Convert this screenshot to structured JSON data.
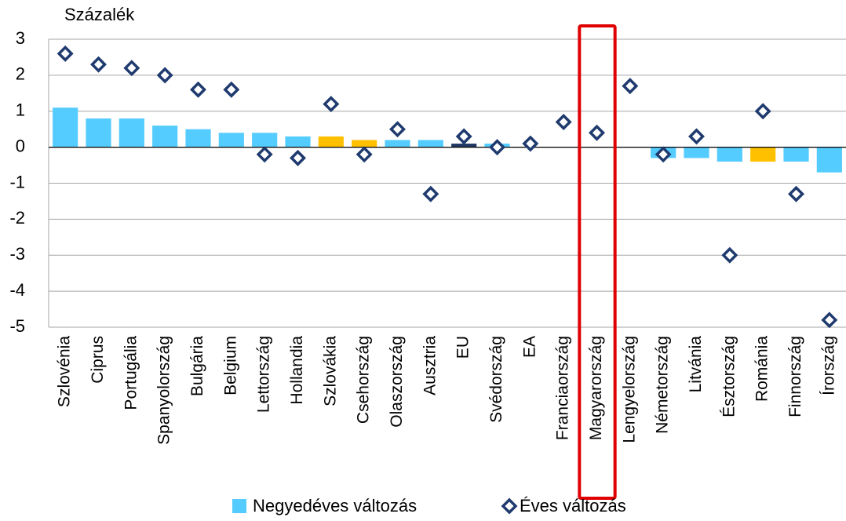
{
  "chart_data": {
    "type": "bar",
    "y_label": "Százalék",
    "categories": [
      "Szlovénia",
      "Ciprus",
      "Portugália",
      "Spanyolország",
      "Bulgária",
      "Belgium",
      "Lettország",
      "Hollandia",
      "Szlovákia",
      "Csehország",
      "Olaszország",
      "Ausztria",
      "EU",
      "Svédország",
      "EA",
      "Franciaország",
      "Magyarország",
      "Lengyelország",
      "Németország",
      "Litvánia",
      "Észtország",
      "Románia",
      "Finnország",
      "Írország"
    ],
    "series": [
      {
        "name": "Negyedéves változás",
        "type": "bar",
        "color": "#55ccff",
        "colors": [
          "#55ccff",
          "#55ccff",
          "#55ccff",
          "#55ccff",
          "#55ccff",
          "#55ccff",
          "#55ccff",
          "#55ccff",
          "#ffc000",
          "#ffc000",
          "#55ccff",
          "#55ccff",
          "#1f3864",
          "#55ccff",
          "#55ccff",
          "#55ccff",
          "#55ccff",
          "#55ccff",
          "#55ccff",
          "#55ccff",
          "#55ccff",
          "#ffc000",
          "#55ccff",
          "#55ccff"
        ],
        "values": [
          1.1,
          0.8,
          0.8,
          0.6,
          0.5,
          0.4,
          0.4,
          0.3,
          0.3,
          0.2,
          0.2,
          0.2,
          0.1,
          0.1,
          0.0,
          0.0,
          0.0,
          0.0,
          -0.3,
          -0.3,
          -0.4,
          -0.4,
          -0.4,
          -0.7
        ]
      },
      {
        "name": "Éves változás",
        "type": "scatter",
        "color": "#1f3a6e",
        "values": [
          2.6,
          2.3,
          2.2,
          2.0,
          1.6,
          1.6,
          -0.2,
          -0.3,
          1.2,
          -0.2,
          0.5,
          -1.3,
          0.3,
          0.0,
          0.1,
          0.7,
          0.4,
          1.7,
          -0.2,
          0.3,
          -3.0,
          1.0,
          -1.3,
          -4.8
        ]
      }
    ],
    "ylim": [
      -5,
      3
    ],
    "yticks": [
      -5,
      -4,
      -3,
      -2,
      -1,
      0,
      1,
      2,
      3
    ],
    "grid": true
  }
}
